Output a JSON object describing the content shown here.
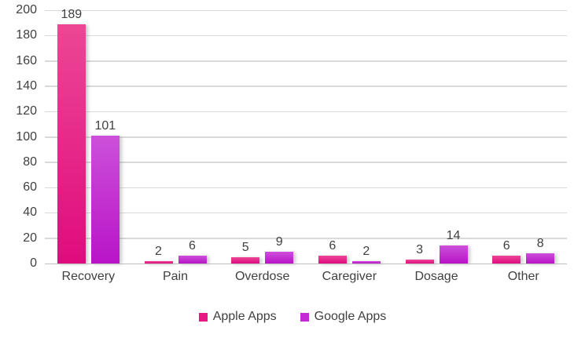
{
  "chart_data": {
    "type": "bar",
    "categories": [
      "Recovery",
      "Pain",
      "Overdose",
      "Caregiver",
      "Dosage",
      "Other"
    ],
    "series": [
      {
        "name": "Apple Apps",
        "values": [
          189,
          2,
          5,
          6,
          3,
          6
        ]
      },
      {
        "name": "Google Apps",
        "values": [
          101,
          6,
          9,
          2,
          14,
          8
        ]
      }
    ],
    "title": "",
    "xlabel": "",
    "ylabel": "",
    "ylim": [
      0,
      200
    ],
    "yticks": [
      0,
      20,
      40,
      60,
      80,
      100,
      120,
      140,
      160,
      180,
      200
    ],
    "grid": "horizontal",
    "legend_position": "bottom",
    "data_labels": true
  },
  "colors": {
    "apple_bar_top": "#ec4795",
    "apple_bar_bottom": "#e00b7e",
    "apple_legend": "#e61984",
    "google_bar_top": "#cc50da",
    "google_bar_bottom": "#b914c7",
    "google_legend": "#c32bd5",
    "gridline": "#d9d9d9",
    "axis_line": "#bfbfbf",
    "label_text": "#404040",
    "background": "#ffffff"
  }
}
